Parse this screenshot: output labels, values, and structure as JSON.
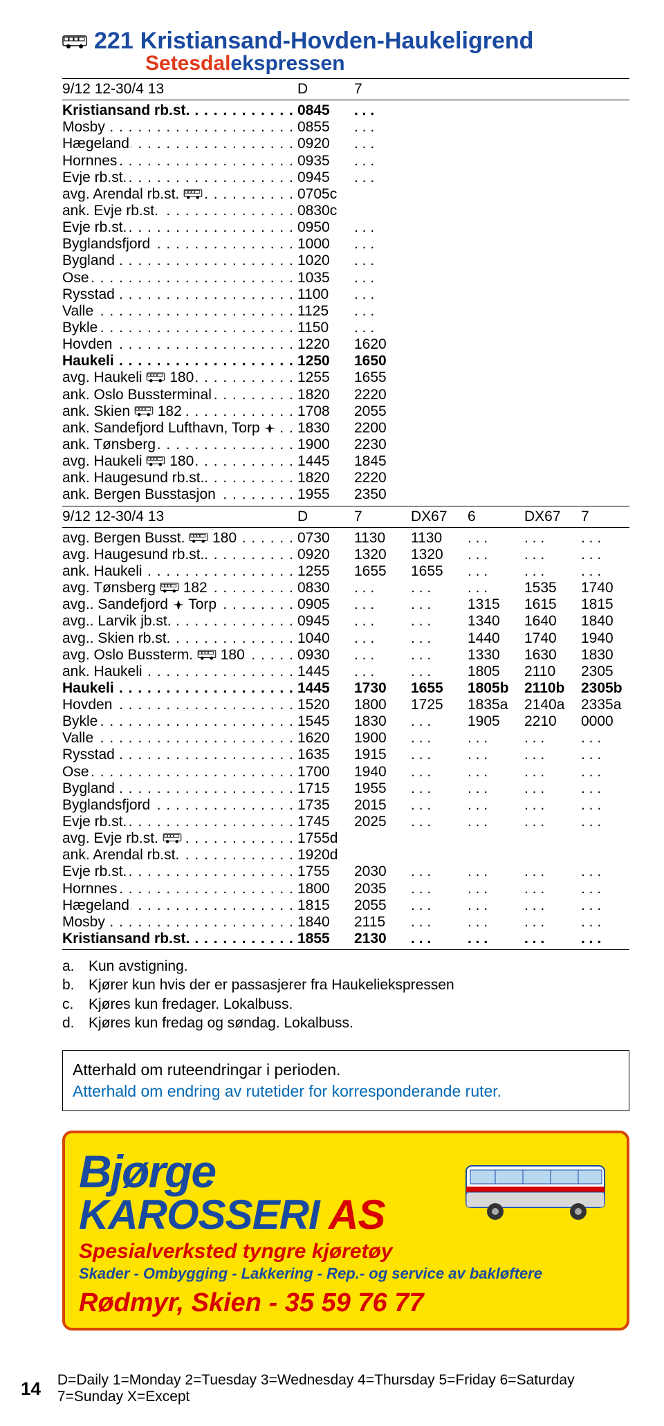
{
  "route": {
    "number": "221",
    "name": "Kristiansand-Hovden-Haukeligrend",
    "brand1": "Setesdal",
    "brand2": "ekspressen"
  },
  "table1": {
    "header": [
      "9/12 12-30/4 13",
      "D",
      "7"
    ],
    "rows": [
      {
        "stop": "Kristiansand rb.st.",
        "bold": true,
        "cols": [
          "0845",
          ". . ."
        ]
      },
      {
        "stop": "Mosby",
        "cols": [
          "0855",
          ". . ."
        ]
      },
      {
        "stop": "Hægeland",
        "cols": [
          "0920",
          ". . ."
        ]
      },
      {
        "stop": "Hornnes",
        "cols": [
          "0935",
          ". . ."
        ]
      },
      {
        "stop": "Evje rb.st.",
        "cols": [
          "0945",
          ". . ."
        ]
      },
      {
        "stop": "avg. Arendal rb.st.",
        "icon": "bus",
        "cols": [
          "0705c",
          ""
        ]
      },
      {
        "stop": "ank. Evje rb.st.",
        "cols": [
          "0830c",
          ""
        ]
      },
      {
        "stop": "Evje rb.st.",
        "cols": [
          "0950",
          ". . ."
        ]
      },
      {
        "stop": "Byglandsfjord",
        "cols": [
          "1000",
          ". . ."
        ]
      },
      {
        "stop": "Bygland",
        "cols": [
          "1020",
          ". . ."
        ]
      },
      {
        "stop": "Ose",
        "cols": [
          "1035",
          ". . ."
        ]
      },
      {
        "stop": "Rysstad",
        "cols": [
          "1100",
          ". . ."
        ]
      },
      {
        "stop": "Valle",
        "cols": [
          "1125",
          ". . ."
        ]
      },
      {
        "stop": "Bykle",
        "cols": [
          "1150",
          ". . ."
        ]
      },
      {
        "stop": "Hovden",
        "cols": [
          "1220",
          "1620"
        ]
      },
      {
        "stop": "Haukeli",
        "bold": true,
        "cols": [
          "1250",
          "1650"
        ]
      },
      {
        "stop": "avg. Haukeli",
        "icon": "bus",
        "icontext": "180",
        "cols": [
          "1255",
          "1655"
        ]
      },
      {
        "stop": "ank. Oslo Bussterminal",
        "cols": [
          "1820",
          "2220"
        ]
      },
      {
        "stop": "ank. Skien",
        "icon": "bus",
        "icontext": "182",
        "cols": [
          "1708",
          "2055"
        ]
      },
      {
        "stop": "ank. Sandefjord Lufthavn, Torp",
        "icon": "plane",
        "cols": [
          "1830",
          "2200"
        ]
      },
      {
        "stop": "ank. Tønsberg",
        "cols": [
          "1900",
          "2230"
        ]
      },
      {
        "stop": "avg. Haukeli",
        "icon": "bus",
        "icontext": "180",
        "cols": [
          "1445",
          "1845"
        ]
      },
      {
        "stop": "ank. Haugesund rb.st.",
        "cols": [
          "1820",
          "2220"
        ]
      },
      {
        "stop": "ank. Bergen Busstasjon",
        "cols": [
          "1955",
          "2350"
        ]
      }
    ]
  },
  "table2": {
    "header": [
      "9/12 12-30/4 13",
      "D",
      "7",
      "DX67",
      "6",
      "DX67",
      "7"
    ],
    "rows": [
      {
        "stop": "avg. Bergen Busst.",
        "icon": "bus",
        "icontext": "180",
        "cols": [
          "0730",
          "1130",
          "1130",
          ". . .",
          ". . .",
          ". . ."
        ]
      },
      {
        "stop": "avg. Haugesund rb.st.",
        "cols": [
          "0920",
          "1320",
          "1320",
          ". . .",
          ". . .",
          ". . ."
        ]
      },
      {
        "stop": "ank. Haukeli",
        "cols": [
          "1255",
          "1655",
          "1655",
          ". . .",
          ". . .",
          ". . ."
        ]
      },
      {
        "stop": "avg. Tønsberg",
        "icon": "bus",
        "icontext": "182",
        "cols": [
          "0830",
          ". . .",
          ". . .",
          ". . .",
          "1535",
          "1740"
        ]
      },
      {
        "stop": "avg.. Sandefjord",
        "icon": "plane",
        "trail": "Torp",
        "cols": [
          "0905",
          ". . .",
          ". . .",
          "1315",
          "1615",
          "1815"
        ]
      },
      {
        "stop": "avg.. Larvik jb.st.",
        "cols": [
          "0945",
          ". . .",
          ". . .",
          "1340",
          "1640",
          "1840"
        ]
      },
      {
        "stop": "avg.. Skien rb.st.",
        "cols": [
          "1040",
          ". . .",
          ". . .",
          "1440",
          "1740",
          "1940"
        ]
      },
      {
        "stop": "avg. Oslo Bussterm.",
        "icon": "bus",
        "icontext": "180",
        "cols": [
          "0930",
          ". . .",
          ". . .",
          "1330",
          "1630",
          "1830"
        ]
      },
      {
        "stop": "ank. Haukeli",
        "cols": [
          "1445",
          ". . .",
          ". . .",
          "1805",
          "2110",
          "2305"
        ]
      },
      {
        "stop": "Haukeli",
        "bold": true,
        "cols": [
          "1445",
          "1730",
          "1655",
          "1805b",
          "2110b",
          "2305b"
        ]
      },
      {
        "stop": "Hovden",
        "cols": [
          "1520",
          "1800",
          "1725",
          "1835a",
          "2140a",
          "2335a"
        ]
      },
      {
        "stop": "Bykle",
        "cols": [
          "1545",
          "1830",
          ". . .",
          "1905",
          "2210",
          "0000"
        ]
      },
      {
        "stop": "Valle",
        "cols": [
          "1620",
          "1900",
          ". . .",
          ". . .",
          ". . .",
          ". . ."
        ]
      },
      {
        "stop": "Rysstad",
        "cols": [
          "1635",
          "1915",
          ". . .",
          ". . .",
          ". . .",
          ". . ."
        ]
      },
      {
        "stop": "Ose",
        "cols": [
          "1700",
          "1940",
          ". . .",
          ". . .",
          ". . .",
          ". . ."
        ]
      },
      {
        "stop": "Bygland",
        "cols": [
          "1715",
          "1955",
          ". . .",
          ". . .",
          ". . .",
          ". . ."
        ]
      },
      {
        "stop": "Byglandsfjord",
        "cols": [
          "1735",
          "2015",
          ". . .",
          ". . .",
          ". . .",
          ". . ."
        ]
      },
      {
        "stop": "Evje rb.st.",
        "cols": [
          "1745",
          "2025",
          ". . .",
          ". . .",
          ". . .",
          ". . ."
        ]
      },
      {
        "stop": "avg. Evje rb.st.",
        "icon": "bus",
        "cols": [
          "1755d",
          ""
        ]
      },
      {
        "stop": "ank. Arendal rb.st.",
        "cols": [
          "1920d",
          ""
        ]
      },
      {
        "stop": "Evje rb.st.",
        "cols": [
          "1755",
          "2030",
          ". . .",
          ". . .",
          ". . .",
          ". . ."
        ]
      },
      {
        "stop": "Hornnes",
        "cols": [
          "1800",
          "2035",
          ". . .",
          ". . .",
          ". . .",
          ". . ."
        ]
      },
      {
        "stop": "Hægeland",
        "cols": [
          "1815",
          "2055",
          ". . .",
          ". . .",
          ". . .",
          ". . ."
        ]
      },
      {
        "stop": "Mosby",
        "cols": [
          "1840",
          "2115",
          ". . .",
          ". . .",
          ". . .",
          ". . ."
        ]
      },
      {
        "stop": "Kristiansand rb.st.",
        "bold": true,
        "cols": [
          "1855",
          "2130",
          ". . .",
          ". . .",
          ". . .",
          ". . ."
        ]
      }
    ]
  },
  "notes": [
    {
      "k": "a.",
      "t": "Kun avstigning."
    },
    {
      "k": "b.",
      "t": "Kjører kun hvis der er passasjerer fra Haukeliekspressen"
    },
    {
      "k": "c.",
      "t": "Kjøres kun fredager. Lokalbuss."
    },
    {
      "k": "d.",
      "t": "Kjøres kun fredag og søndag. Lokalbuss."
    }
  ],
  "notice": {
    "line1": "Atterhald om ruteendringar i perioden.",
    "line2": "Atterhald om endring av rutetider for korresponderande ruter."
  },
  "ad": {
    "brand1": "Bjørge",
    "brand2": "KAROSSERI",
    "brand3": "AS",
    "tag1": "Spesialverksted tyngre kjøretøy",
    "tag2": "Skader - Ombygging - Lakkering - Rep.- og service av bakløftere",
    "tag3a": "Rødmyr, Skien",
    "tag3b": "35 59 76 77"
  },
  "footer": {
    "page": "14",
    "legend": "D=Daily 1=Monday 2=Tuesday 3=Wednesday 4=Thursday 5=Friday 6=Saturday 7=Sunday X=Except"
  },
  "colors": {
    "blue": "#1a4aa0",
    "red": "#e03a1a",
    "ad_border": "#d94600",
    "ad_bg": "#ffe300",
    "ad_red": "#d60000",
    "notice_blue": "#0068b4"
  }
}
